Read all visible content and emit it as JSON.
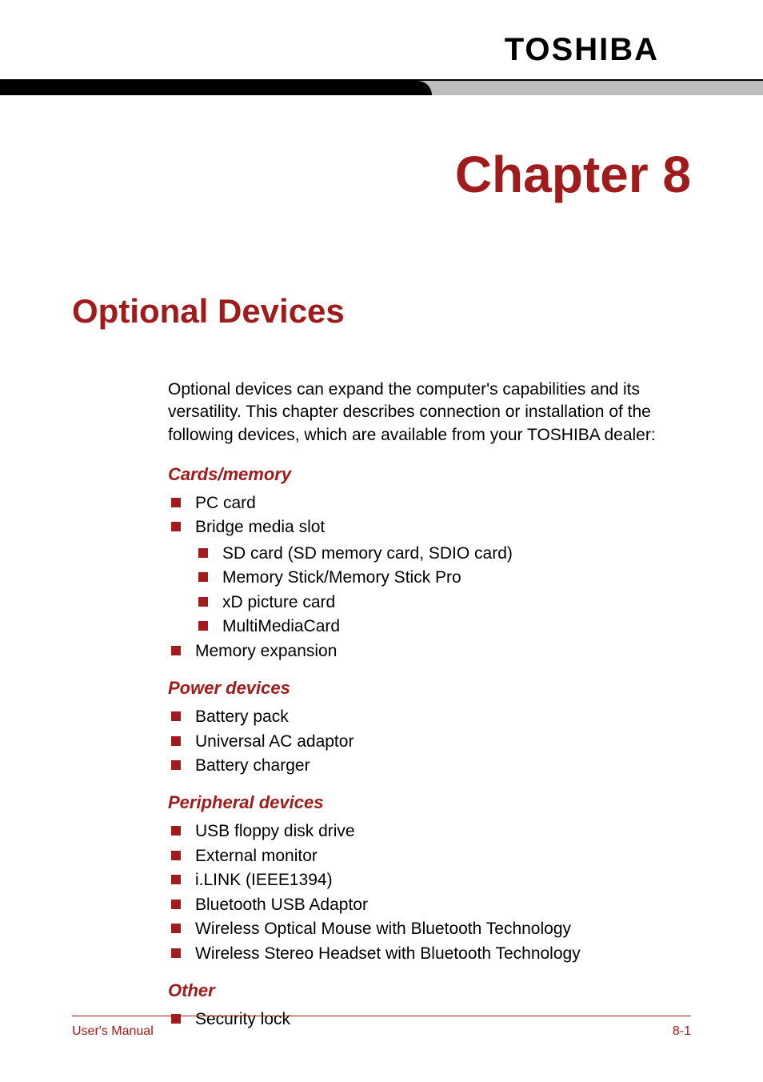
{
  "colors": {
    "accent_red": "#a01b1b",
    "rule_gray": "#bdbdbd",
    "rule_black": "#000000",
    "text_black": "#000000",
    "background": "#ffffff"
  },
  "typography": {
    "brand_fontsize": 40,
    "chapter_fontsize": 64,
    "section_fontsize": 42,
    "subhead_fontsize": 22,
    "body_fontsize": 21,
    "footer_fontsize": 16,
    "brand_letterspacing": 2
  },
  "header": {
    "brand": "TOSHIBA",
    "chapter": "Chapter 8"
  },
  "section": {
    "title": "Optional Devices",
    "intro": "Optional devices can expand the computer's capabilities and its versatility. This chapter describes connection or installation of the following devices, which are available from your TOSHIBA dealer:"
  },
  "groups": [
    {
      "heading": "Cards/memory",
      "items": [
        {
          "label": "PC card"
        },
        {
          "label": "Bridge media slot",
          "children": [
            {
              "label": "SD card (SD memory card, SDIO card)"
            },
            {
              "label": "Memory Stick/Memory Stick Pro"
            },
            {
              "label": "xD picture card"
            },
            {
              "label": "MultiMediaCard"
            }
          ]
        },
        {
          "label": "Memory expansion"
        }
      ]
    },
    {
      "heading": "Power devices",
      "items": [
        {
          "label": "Battery pack"
        },
        {
          "label": "Universal AC adaptor"
        },
        {
          "label": "Battery charger"
        }
      ]
    },
    {
      "heading": "Peripheral devices",
      "items": [
        {
          "label": "USB floppy disk drive"
        },
        {
          "label": "External monitor"
        },
        {
          "label": "i.LINK (IEEE1394)"
        },
        {
          "label": "Bluetooth USB Adaptor"
        },
        {
          "label": "Wireless Optical Mouse with Bluetooth Technology"
        },
        {
          "label": "Wireless Stereo Headset with Bluetooth Technology"
        }
      ]
    },
    {
      "heading": "Other",
      "items": [
        {
          "label": "Security lock"
        }
      ]
    }
  ],
  "footer": {
    "left": "User's Manual",
    "right": "8-1"
  }
}
